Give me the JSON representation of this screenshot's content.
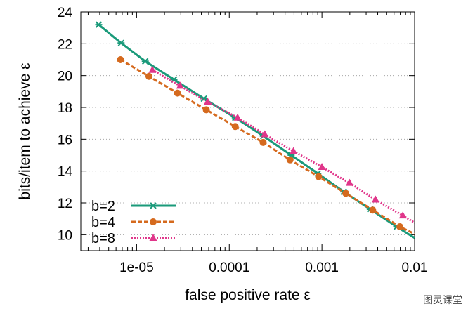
{
  "chart_data": {
    "type": "line",
    "title": "",
    "xlabel": "false positive rate ε",
    "ylabel": "bits/item to achieve ε",
    "xscale": "log",
    "xlim": [
      2.5e-06,
      0.01
    ],
    "ylim": [
      9,
      24
    ],
    "x_ticks": [
      1e-05,
      0.0001,
      0.001,
      0.01
    ],
    "x_tick_labels": [
      "1e-05",
      "0.0001",
      "0.001",
      "0.01"
    ],
    "y_ticks": [
      10,
      12,
      14,
      16,
      18,
      20,
      22,
      24
    ],
    "y_tick_labels": [
      "10",
      "12",
      "14",
      "16",
      "18",
      "20",
      "22",
      "24"
    ],
    "grid": "horizontal dotted",
    "legend_position": "bottom-left",
    "series": [
      {
        "name": "b=2",
        "color": "#1a9a7a",
        "marker": "cross",
        "line_style": "solid",
        "x": [
          3.9e-06,
          6.8e-06,
          1.24e-05,
          2.53e-05,
          5.32e-05,
          0.000116,
          0.000233,
          0.000465,
          0.000903,
          0.00172,
          0.00332,
          0.00641,
          0.01
        ],
        "y": [
          23.2,
          22.05,
          20.9,
          19.75,
          18.55,
          17.35,
          16.2,
          15.0,
          13.85,
          12.7,
          11.6,
          10.5,
          9.8
        ]
      },
      {
        "name": "b=4",
        "color": "#d56a1e",
        "marker": "circle",
        "line_style": "dashed",
        "x": [
          6.7e-06,
          1.36e-05,
          2.76e-05,
          5.65e-05,
          0.000116,
          0.000232,
          0.000453,
          0.000922,
          0.00181,
          0.00353,
          0.00694,
          0.01
        ],
        "y": [
          21.0,
          19.95,
          18.9,
          17.85,
          16.8,
          15.8,
          14.7,
          13.65,
          12.6,
          11.55,
          10.5,
          10.05
        ]
      },
      {
        "name": "b=8",
        "color": "#e0368a",
        "marker": "triangle",
        "line_style": "dotted",
        "x": [
          1.48e-05,
          2.95e-05,
          5.85e-05,
          0.000123,
          0.000242,
          0.000493,
          0.000999,
          0.00199,
          0.00379,
          0.00746,
          0.01
        ],
        "y": [
          20.35,
          19.35,
          18.35,
          17.35,
          16.3,
          15.25,
          14.25,
          13.25,
          12.2,
          11.2,
          10.75
        ]
      }
    ]
  },
  "watermark": "图灵课堂"
}
